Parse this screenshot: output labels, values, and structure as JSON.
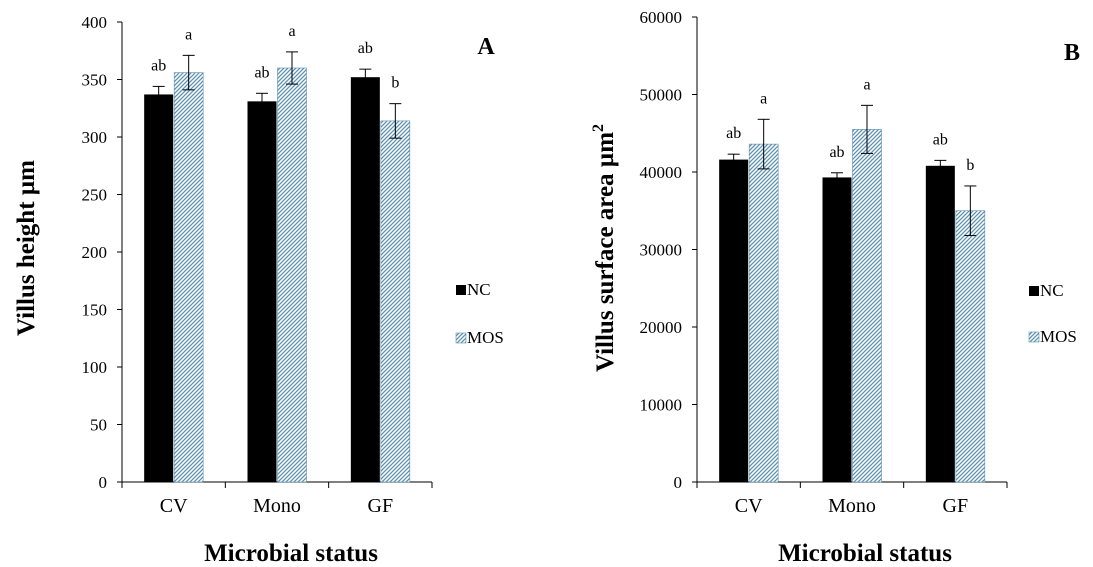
{
  "chart_data": [
    {
      "type": "bar",
      "panel_label": "A",
      "categories": [
        "CV",
        "Mono",
        "GF"
      ],
      "xlabel": "Microbial status",
      "ylabel": "Villus height µm",
      "ylim": [
        0,
        400
      ],
      "yticks": [
        0,
        50,
        100,
        150,
        200,
        250,
        300,
        350,
        400
      ],
      "series": [
        {
          "name": "NC",
          "color": "#000000",
          "pattern": "solid",
          "values": [
            337,
            331,
            352
          ],
          "errors": [
            7,
            7,
            7
          ],
          "labels": [
            "ab",
            "ab",
            "ab"
          ]
        },
        {
          "name": "MOS",
          "color": "#5b8fb0",
          "pattern": "diagonal-hatch",
          "values": [
            356,
            360,
            314
          ],
          "errors": [
            15,
            14,
            15
          ],
          "labels": [
            "a",
            "a",
            "b"
          ]
        }
      ],
      "legend": "right"
    },
    {
      "type": "bar",
      "panel_label": "B",
      "categories": [
        "CV",
        "Mono",
        "GF"
      ],
      "xlabel": "Microbial status",
      "ylabel": "Villus surface area µm",
      "ylabel_superscript": "2",
      "ylim": [
        0,
        60000
      ],
      "yticks": [
        0,
        10000,
        20000,
        30000,
        40000,
        50000,
        60000
      ],
      "series": [
        {
          "name": "NC",
          "color": "#000000",
          "pattern": "solid",
          "values": [
            41600,
            39300,
            40800
          ],
          "errors": [
            700,
            600,
            700
          ],
          "labels": [
            "ab",
            "ab",
            "ab"
          ]
        },
        {
          "name": "MOS",
          "color": "#5b8fb0",
          "pattern": "diagonal-hatch",
          "values": [
            43600,
            45500,
            35000
          ],
          "errors": [
            3200,
            3100,
            3200
          ],
          "labels": [
            "a",
            "a",
            "b"
          ]
        }
      ],
      "legend": "right"
    }
  ]
}
